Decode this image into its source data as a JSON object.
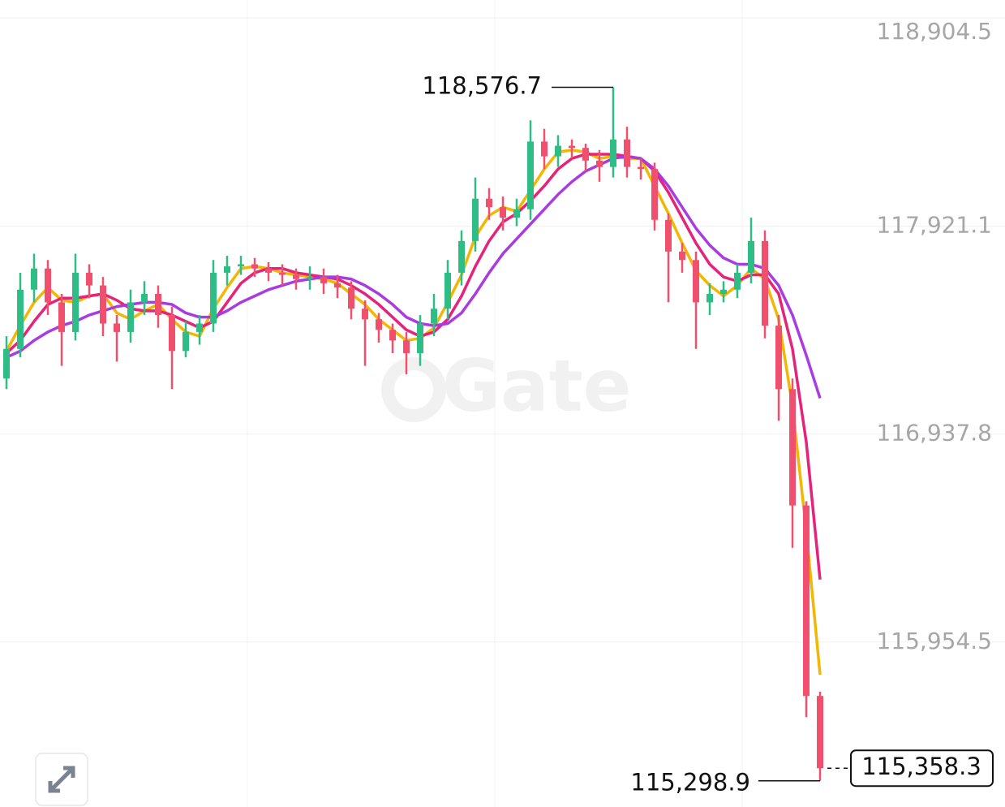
{
  "chart_data": {
    "type": "candlestick",
    "watermark": "Gate",
    "up_color": "#2ebd85",
    "down_color": "#f0506e",
    "open": [
      117200,
      117340,
      117620,
      117720,
      117560,
      117420,
      117700,
      117640,
      117460,
      117420,
      117560,
      117600,
      117500,
      117330,
      117420,
      117460,
      117700,
      117730,
      117740,
      117720,
      117700,
      117690,
      117670,
      117680,
      117650,
      117630,
      117530,
      117480,
      117430,
      117380,
      117320,
      117460,
      117530,
      117700,
      117850,
      118050,
      118010,
      117960,
      118000,
      118320,
      118250,
      118300,
      118290,
      118230,
      118200,
      118330,
      118200,
      118190,
      117950,
      117800,
      117760,
      117560,
      117600,
      117620,
      117700,
      117850,
      117450,
      117150,
      116600,
      115700
    ],
    "high": [
      117400,
      117700,
      117790,
      117760,
      117600,
      117790,
      117740,
      117680,
      117500,
      117620,
      117660,
      117640,
      117540,
      117470,
      117500,
      117760,
      117780,
      117780,
      117770,
      117750,
      117740,
      117720,
      117730,
      117720,
      117690,
      117660,
      117570,
      117510,
      117460,
      117420,
      117500,
      117600,
      117760,
      117900,
      118150,
      118100,
      118060,
      118050,
      118420,
      118380,
      118350,
      118330,
      118310,
      118280,
      118576.7,
      118390,
      118240,
      118220,
      117980,
      117840,
      117800,
      117650,
      117660,
      117740,
      117960,
      117900,
      117500,
      117200,
      116620,
      115720
    ],
    "low": [
      117150,
      117300,
      117560,
      117500,
      117260,
      117380,
      117580,
      117400,
      117280,
      117370,
      117500,
      117440,
      117150,
      117300,
      117360,
      117420,
      117640,
      117690,
      117680,
      117660,
      117640,
      117620,
      117620,
      117600,
      117580,
      117480,
      117260,
      117370,
      117320,
      117220,
      117260,
      117400,
      117480,
      117640,
      117800,
      117950,
      117900,
      117920,
      117950,
      118190,
      118200,
      118240,
      118180,
      118130,
      118150,
      118150,
      118140,
      117900,
      117560,
      117700,
      117340,
      117500,
      117560,
      117580,
      117650,
      117390,
      117000,
      116400,
      115600,
      115298.9
    ],
    "close": [
      117340,
      117620,
      117720,
      117560,
      117420,
      117700,
      117640,
      117460,
      117420,
      117560,
      117600,
      117500,
      117330,
      117420,
      117460,
      117700,
      117730,
      117740,
      117720,
      117700,
      117690,
      117670,
      117680,
      117650,
      117630,
      117530,
      117480,
      117430,
      117380,
      117320,
      117460,
      117530,
      117700,
      117850,
      118050,
      118010,
      117960,
      118000,
      118320,
      118250,
      118300,
      118290,
      118230,
      118200,
      118330,
      118200,
      118190,
      117950,
      117800,
      117760,
      117560,
      117600,
      117620,
      117700,
      117850,
      117450,
      117150,
      116600,
      115700,
      115358.3
    ],
    "series": [
      {
        "color": "#f2b705",
        "values": [
          117330,
          117450,
          117560,
          117630,
          117570,
          117560,
          117590,
          117600,
          117510,
          117480,
          117520,
          117550,
          117480,
          117420,
          117400,
          117530,
          117630,
          117720,
          117730,
          117720,
          117700,
          117690,
          117680,
          117670,
          117650,
          117600,
          117550,
          117480,
          117430,
          117380,
          117390,
          117440,
          117560,
          117690,
          117870,
          117970,
          118010,
          117990,
          118090,
          118190,
          118270,
          118280,
          118270,
          118240,
          118250,
          118240,
          118240,
          118110,
          117980,
          117840,
          117710,
          117640,
          117590,
          117640,
          117720,
          117670,
          117480,
          117070,
          116480,
          115800
        ]
      },
      {
        "color": "#e6237a",
        "values": [
          117320,
          117380,
          117470,
          117550,
          117580,
          117580,
          117590,
          117600,
          117570,
          117530,
          117520,
          117520,
          117500,
          117470,
          117440,
          117470,
          117560,
          117650,
          117700,
          117720,
          117720,
          117700,
          117690,
          117680,
          117670,
          117640,
          117600,
          117550,
          117490,
          117430,
          117400,
          117420,
          117480,
          117590,
          117730,
          117850,
          117940,
          117980,
          118040,
          118110,
          118190,
          118240,
          118260,
          118260,
          118260,
          118250,
          118240,
          118180,
          118080,
          117960,
          117840,
          117740,
          117680,
          117660,
          117690,
          117690,
          117600,
          117340,
          116900,
          116250
        ]
      },
      {
        "color": "#a93ce0",
        "values": [
          117300,
          117330,
          117380,
          117420,
          117450,
          117470,
          117500,
          117520,
          117540,
          117550,
          117560,
          117560,
          117550,
          117510,
          117490,
          117490,
          117520,
          117560,
          117590,
          117620,
          117640,
          117660,
          117670,
          117680,
          117680,
          117670,
          117640,
          117600,
          117550,
          117490,
          117460,
          117450,
          117460,
          117510,
          117600,
          117700,
          117790,
          117860,
          117930,
          118000,
          118070,
          118130,
          118180,
          118210,
          118240,
          118250,
          118240,
          118190,
          118110,
          118010,
          117910,
          117830,
          117770,
          117740,
          117740,
          117720,
          117640,
          117500,
          117310,
          117107
        ]
      }
    ],
    "ylim": [
      115175,
      118989
    ],
    "yticks": [
      {
        "value": 118904.5,
        "label": "118,904.5"
      },
      {
        "value": 117921.1,
        "label": "117,921.1"
      },
      {
        "value": 116937.8,
        "label": "116,937.8"
      },
      {
        "value": 115954.5,
        "label": "115,954.5"
      }
    ],
    "grid": true,
    "high_marker": {
      "value": 118576.7,
      "label": "118,576.7"
    },
    "low_marker": {
      "value": 115298.9,
      "label": "115,298.9"
    },
    "last_price": {
      "value": 115358.3,
      "label": "115,358.3"
    }
  }
}
